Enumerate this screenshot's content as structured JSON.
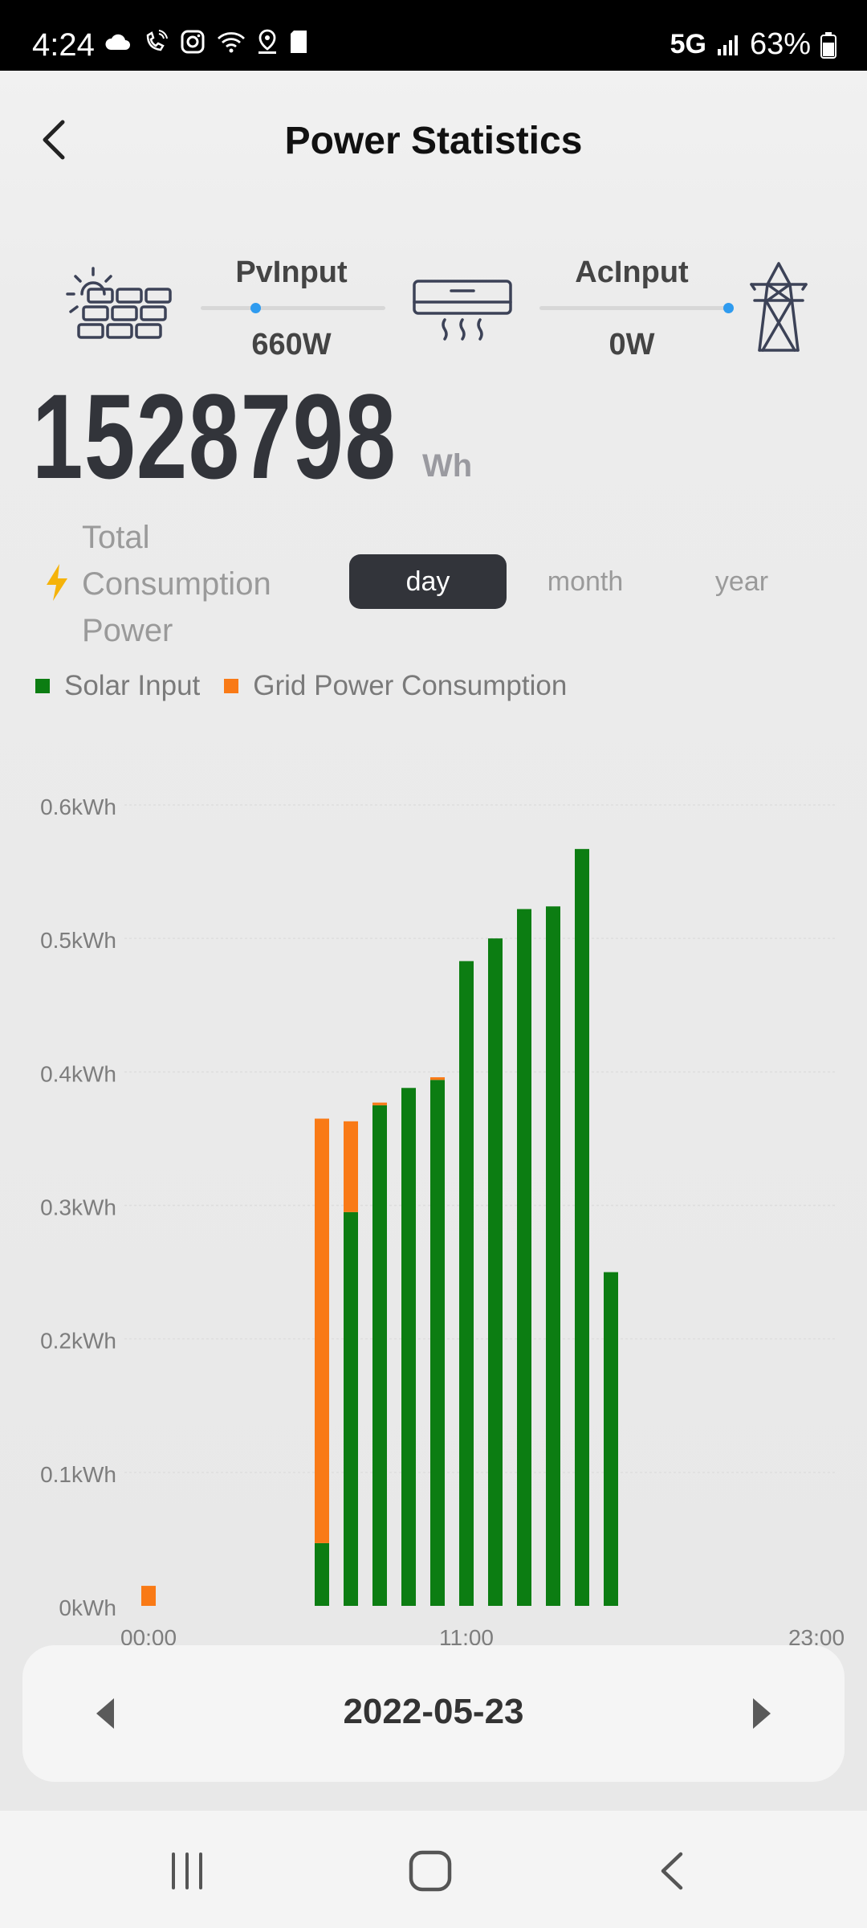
{
  "status_bar": {
    "time": "4:24",
    "network": "5G",
    "battery": "63%"
  },
  "header": {
    "title": "Power Statistics"
  },
  "flow": {
    "pv_label": "PvInput",
    "pv_value": "660W",
    "ac_label": "AcInput",
    "ac_value": "0W"
  },
  "summary": {
    "total": "1528798",
    "unit": "Wh",
    "label": "Total Consumption Power"
  },
  "tabs": {
    "day": "day",
    "month": "month",
    "year": "year",
    "selected": "day"
  },
  "legend": {
    "solar": "Solar Input",
    "grid": "Grid Power Consumption"
  },
  "colors": {
    "solar": "#0c7d12",
    "grid": "#f97a16",
    "accent": "#2f9bef",
    "tab_active": "#32343a"
  },
  "chart_data": {
    "type": "bar",
    "stacked": true,
    "y_tick_labels": [
      "0kWh",
      "0.1kWh",
      "0.2kWh",
      "0.3kWh",
      "0.4kWh",
      "0.5kWh",
      "0.6kWh"
    ],
    "x_tick_labels": [
      "00:00",
      "11:00",
      "23:00"
    ],
    "ylim": [
      0,
      0.6
    ],
    "categories": [
      "00:00",
      "01:00",
      "02:00",
      "03:00",
      "04:00",
      "05:00",
      "06:00",
      "07:00",
      "08:00",
      "09:00",
      "10:00",
      "11:00",
      "12:00",
      "13:00",
      "14:00",
      "15:00",
      "16:00",
      "17:00",
      "18:00",
      "19:00",
      "20:00",
      "21:00",
      "22:00",
      "23:00"
    ],
    "series": [
      {
        "name": "Solar Input",
        "values": [
          0,
          0,
          0,
          0,
          0,
          0,
          0.047,
          0.295,
          0.375,
          0.388,
          0.394,
          0.483,
          0.5,
          0.522,
          0.524,
          0.567,
          0.25,
          0,
          0,
          0,
          0,
          0,
          0,
          0
        ]
      },
      {
        "name": "Grid Power Consumption",
        "values": [
          0.015,
          0,
          0,
          0,
          0,
          0,
          0.318,
          0.068,
          0.002,
          0,
          0.002,
          0,
          0,
          0,
          0,
          0,
          0,
          0,
          0,
          0,
          0,
          0,
          0,
          0
        ]
      }
    ]
  },
  "date_nav": {
    "date": "2022-05-23"
  }
}
